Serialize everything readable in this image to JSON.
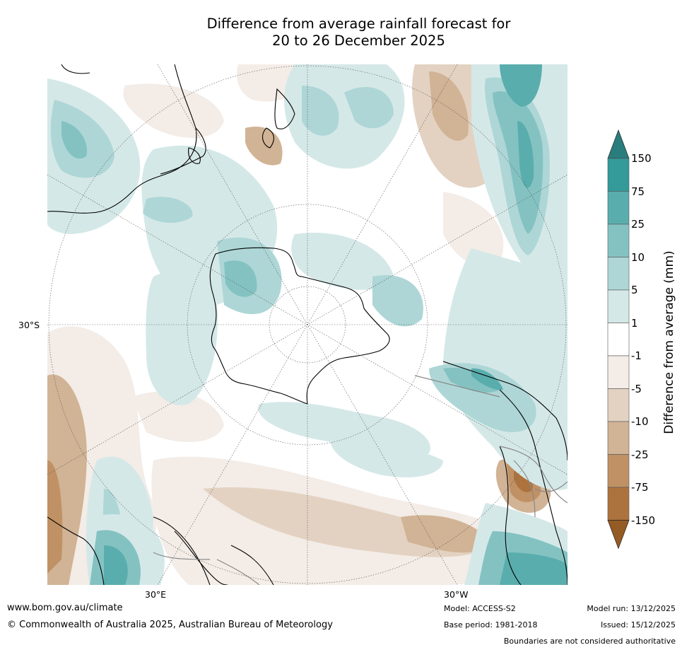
{
  "title": {
    "line1": "Difference from average rainfall forecast for",
    "line2": "20 to 26 December 2025"
  },
  "map": {
    "projection": "south polar stereographic",
    "lat_label": "30°S",
    "lon_label_left": "30°E",
    "lon_label_right": "30°W"
  },
  "colorbar": {
    "label": "Difference from average (mm)",
    "ticks": [
      "150",
      "75",
      "25",
      "10",
      "5",
      "1",
      "-1",
      "-5",
      "-10",
      "-25",
      "-75",
      "-150"
    ],
    "colors": {
      "over": "#2a7d7d",
      "b75_150": "#349a9a",
      "b25_75": "#5aadad",
      "b10_25": "#84c2c2",
      "b5_10": "#aed6d6",
      "b1_5": "#d5e8e8",
      "neutral": "#ffffff",
      "n1_5": "#f3ece7",
      "n5_10": "#e3d2c2",
      "n10_25": "#d1b395",
      "n25_75": "#bf9164",
      "n75_150": "#ac733e",
      "under": "#955b24"
    }
  },
  "footer": {
    "website": "www.bom.gov.au/climate",
    "copyright": "© Commonwealth of Australia 2025, Australian Bureau of Meteorology",
    "model": "Model: ACCESS-S2",
    "base_period": "Base period: 1981-2018",
    "model_run": "Model run: 13/12/2025",
    "issued": "Issued: 15/12/2025",
    "disclaimer": "Boundaries are not considered authoritative"
  }
}
